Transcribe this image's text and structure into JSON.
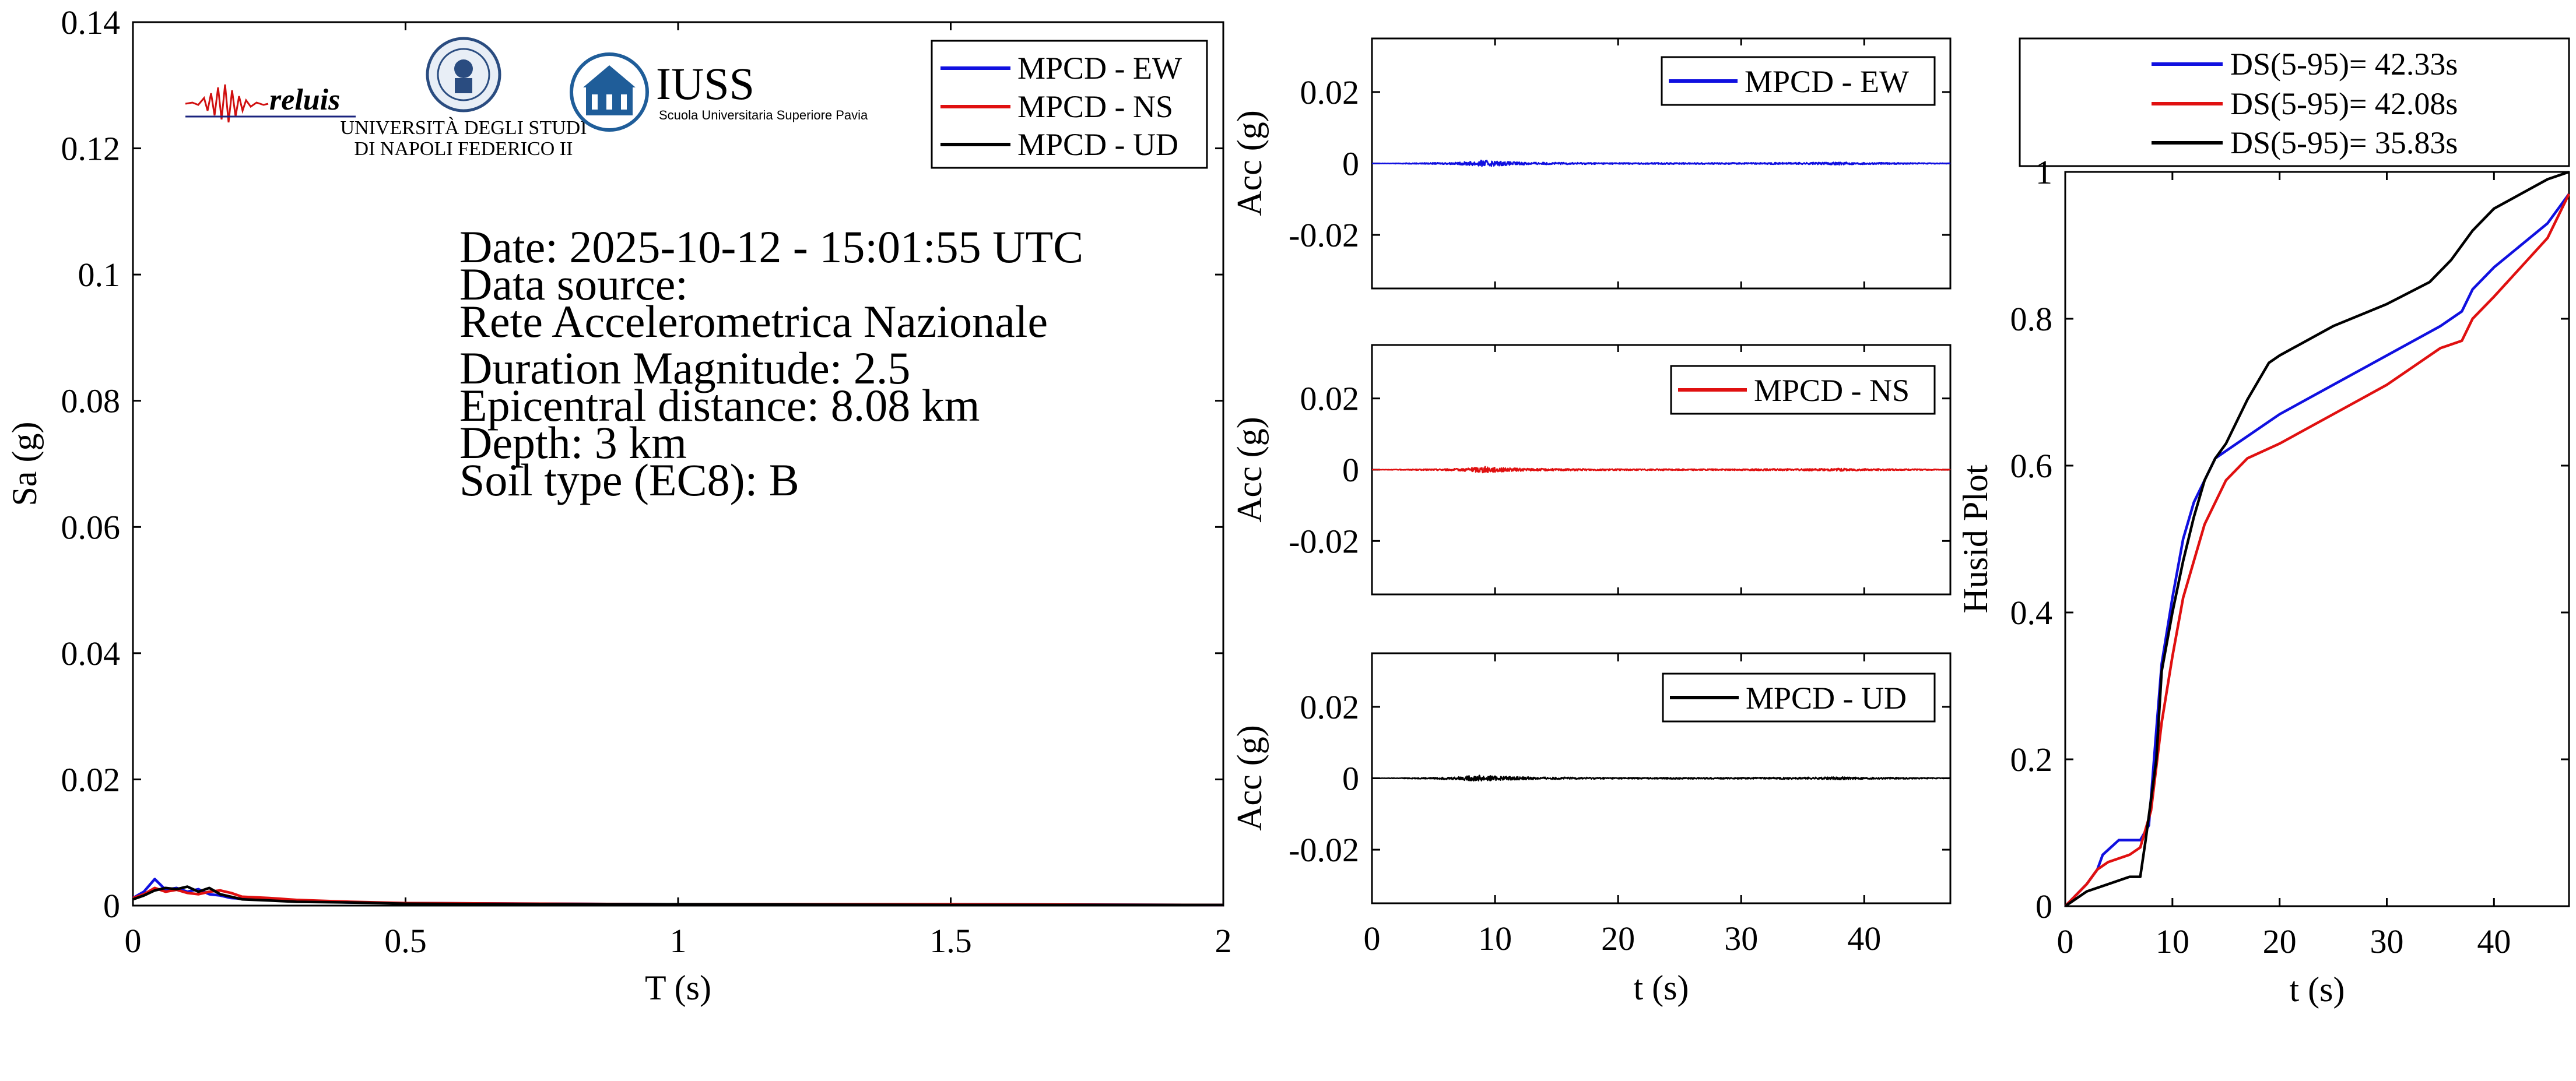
{
  "chart_data": [
    {
      "type": "line",
      "xlabel": "T (s)",
      "ylabel": "Sa (g)",
      "xlim": [
        0,
        2
      ],
      "ylim": [
        0,
        0.14
      ],
      "xticks": [
        0,
        0.5,
        1,
        1.5,
        2
      ],
      "xtick_labels": [
        "0",
        "0.5",
        "1",
        "1.5",
        "2"
      ],
      "yticks": [
        0,
        0.02,
        0.04,
        0.06,
        0.08,
        0.1,
        0.12,
        0.14
      ],
      "ytick_labels": [
        "0",
        "0.02",
        "0.04",
        "0.06",
        "0.08",
        "0.1",
        "0.12",
        "0.14"
      ],
      "legend_position": "top-right",
      "series": [
        {
          "name": "MPCD - EW",
          "color": "#1010e0",
          "x": [
            0,
            0.02,
            0.04,
            0.06,
            0.08,
            0.1,
            0.12,
            0.14,
            0.16,
            0.18,
            0.2,
            0.25,
            0.3,
            0.4,
            0.5,
            0.75,
            1.0,
            1.5,
            2.0
          ],
          "y": [
            0.0012,
            0.0022,
            0.0042,
            0.0025,
            0.0028,
            0.0022,
            0.0026,
            0.0018,
            0.0016,
            0.0012,
            0.0011,
            0.0009,
            0.0007,
            0.0005,
            0.0004,
            0.0003,
            0.0002,
            0.0002,
            0.0001
          ]
        },
        {
          "name": "MPCD - NS",
          "color": "#e01010",
          "x": [
            0,
            0.02,
            0.04,
            0.06,
            0.08,
            0.1,
            0.12,
            0.14,
            0.16,
            0.18,
            0.2,
            0.25,
            0.3,
            0.4,
            0.5,
            0.75,
            1.0,
            1.5,
            2.0
          ],
          "y": [
            0.0012,
            0.0018,
            0.0028,
            0.0022,
            0.0025,
            0.002,
            0.0018,
            0.0022,
            0.0024,
            0.002,
            0.0014,
            0.0012,
            0.0009,
            0.0006,
            0.0004,
            0.0003,
            0.0002,
            0.0002,
            0.0001
          ]
        },
        {
          "name": "MPCD - UD",
          "color": "#000000",
          "x": [
            0,
            0.02,
            0.04,
            0.06,
            0.08,
            0.1,
            0.12,
            0.14,
            0.16,
            0.18,
            0.2,
            0.25,
            0.3,
            0.4,
            0.5,
            0.75,
            1.0,
            1.5,
            2.0
          ],
          "y": [
            0.001,
            0.0016,
            0.0024,
            0.0028,
            0.0026,
            0.003,
            0.0022,
            0.0028,
            0.0018,
            0.0014,
            0.001,
            0.0008,
            0.0006,
            0.0005,
            0.0003,
            0.0002,
            0.0002,
            0.0001,
            0.0001
          ]
        }
      ]
    },
    {
      "type": "line",
      "xlabel": "",
      "ylabel": "Acc (g)",
      "xlim": [
        0,
        47
      ],
      "ylim": [
        -0.035,
        0.035
      ],
      "yticks": [
        -0.02,
        0,
        0.02
      ],
      "ytick_labels": [
        "-0.02",
        "0",
        "0.02"
      ],
      "legend_position": "top-right",
      "series": [
        {
          "name": "MPCD - EW",
          "color": "#1010e0",
          "x": [
            0,
            5,
            7,
            8,
            9,
            10,
            11,
            12,
            14,
            20,
            30,
            37,
            38,
            39,
            47
          ],
          "y": [
            0,
            0.0002,
            0.0003,
            0.0006,
            0.0009,
            0.0007,
            0.0005,
            0.0004,
            0.0003,
            0.0002,
            0.0002,
            0.0003,
            0.0004,
            0.0003,
            0.0001
          ]
        }
      ]
    },
    {
      "type": "line",
      "xlabel": "",
      "ylabel": "Acc (g)",
      "xlim": [
        0,
        47
      ],
      "ylim": [
        -0.035,
        0.035
      ],
      "yticks": [
        -0.02,
        0,
        0.02
      ],
      "ytick_labels": [
        "-0.02",
        "0",
        "0.02"
      ],
      "legend_position": "top-right",
      "series": [
        {
          "name": "MPCD - NS",
          "color": "#e01010",
          "x": [
            0,
            5,
            7,
            8,
            9,
            10,
            11,
            12,
            14,
            20,
            30,
            37,
            38,
            39,
            47
          ],
          "y": [
            0,
            0.0002,
            0.0003,
            0.0006,
            0.0009,
            0.0007,
            0.0005,
            0.0004,
            0.0003,
            0.0002,
            0.0002,
            0.0003,
            0.0004,
            0.0003,
            0.0001
          ]
        }
      ]
    },
    {
      "type": "line",
      "xlabel": "t (s)",
      "ylabel": "Acc (g)",
      "xlim": [
        0,
        47
      ],
      "ylim": [
        -0.035,
        0.035
      ],
      "xticks": [
        0,
        10,
        20,
        30,
        40
      ],
      "xtick_labels": [
        "0",
        "10",
        "20",
        "30",
        "40"
      ],
      "yticks": [
        -0.02,
        0,
        0.02
      ],
      "ytick_labels": [
        "-0.02",
        "0",
        "0.02"
      ],
      "legend_position": "top-right",
      "series": [
        {
          "name": "MPCD - UD",
          "color": "#000000",
          "x": [
            0,
            5,
            7,
            8,
            9,
            10,
            11,
            12,
            14,
            20,
            30,
            37,
            38,
            39,
            47
          ],
          "y": [
            0,
            0.0002,
            0.0004,
            0.0007,
            0.0009,
            0.0006,
            0.0005,
            0.0004,
            0.0003,
            0.0002,
            0.0002,
            0.0003,
            0.0004,
            0.0003,
            0.0001
          ]
        }
      ]
    },
    {
      "type": "line",
      "xlabel": "t (s)",
      "ylabel": "Husid Plot",
      "xlim": [
        0,
        47
      ],
      "ylim": [
        0,
        1
      ],
      "xticks": [
        0,
        10,
        20,
        30,
        40
      ],
      "xtick_labels": [
        "0",
        "10",
        "20",
        "30",
        "40"
      ],
      "yticks": [
        0,
        0.2,
        0.4,
        0.6,
        0.8,
        1
      ],
      "ytick_labels": [
        "0",
        "0.2",
        "0.4",
        "0.6",
        "0.8",
        "1"
      ],
      "legend_position": "top",
      "series": [
        {
          "name": "DS(5-95)= 42.33s",
          "color": "#1010e0",
          "x": [
            0,
            2,
            3,
            3.5,
            5,
            7,
            7.8,
            8.5,
            9,
            10,
            11,
            12,
            13,
            14,
            15,
            17,
            20,
            25,
            30,
            35,
            37,
            38,
            40,
            45,
            47
          ],
          "y": [
            0,
            0.03,
            0.05,
            0.07,
            0.09,
            0.09,
            0.11,
            0.24,
            0.33,
            0.42,
            0.5,
            0.55,
            0.58,
            0.61,
            0.62,
            0.64,
            0.67,
            0.71,
            0.75,
            0.79,
            0.81,
            0.84,
            0.87,
            0.93,
            0.97
          ]
        },
        {
          "name": "DS(5-95)= 42.08s",
          "color": "#e01010",
          "x": [
            0,
            2,
            3,
            4,
            6,
            7,
            8,
            9,
            10,
            11,
            12,
            13,
            15,
            17,
            20,
            25,
            30,
            35,
            37,
            38,
            40,
            45,
            47
          ],
          "y": [
            0,
            0.03,
            0.05,
            0.06,
            0.07,
            0.08,
            0.13,
            0.25,
            0.34,
            0.42,
            0.47,
            0.52,
            0.58,
            0.61,
            0.63,
            0.67,
            0.71,
            0.76,
            0.77,
            0.8,
            0.83,
            0.91,
            0.97
          ]
        },
        {
          "name": "DS(5-95)= 35.83s",
          "color": "#000000",
          "x": [
            0,
            2,
            4,
            6,
            7,
            7.5,
            8.5,
            9,
            10,
            11,
            12,
            13,
            14,
            15,
            17,
            19,
            20,
            25,
            30,
            34,
            36,
            37,
            38,
            40,
            45,
            47
          ],
          "y": [
            0,
            0.02,
            0.03,
            0.04,
            0.04,
            0.09,
            0.2,
            0.32,
            0.4,
            0.47,
            0.53,
            0.58,
            0.61,
            0.63,
            0.69,
            0.74,
            0.75,
            0.79,
            0.82,
            0.85,
            0.88,
            0.9,
            0.92,
            0.95,
            0.99,
            1.0
          ]
        }
      ]
    }
  ],
  "info": {
    "date": "Date: 2025-10-12 - 15:01:55 UTC",
    "source_label": "Data source:",
    "source_name": "Rete Accelerometrica Nazionale",
    "magnitude": "Duration Magnitude: 2.5",
    "distance": "Epicentral distance: 8.08 km",
    "depth": "Depth: 3 km",
    "soil": "Soil type (EC8): B"
  },
  "logos": {
    "reluis": "reluis",
    "unina_line1": "UNIVERSITÀ DEGLI STUDI",
    "unina_line2": "DI NAPOLI FEDERICO II",
    "iuss": "IUSS",
    "iuss_sub": "Scuola Universitaria Superiore Pavia"
  }
}
